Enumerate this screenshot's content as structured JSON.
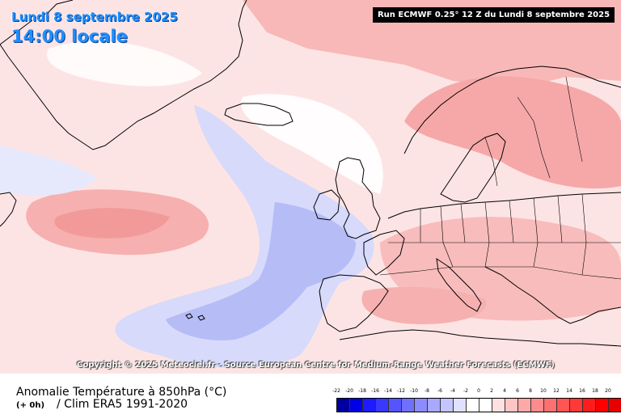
{
  "header": {
    "date": "Lundi 8 septembre 2025",
    "time": "14:00 locale",
    "run": "Run ECMWF 0.25° 12 Z du Lundi 8 septembre 2025"
  },
  "map": {
    "copyright": "Copyright © 2025 Meteociel.fr - Source European Centre for Medium-Range Weather Forecasts (ECMWF)",
    "regions": [
      "Greenland",
      "Iceland",
      "Scandinavia",
      "British Isles",
      "Europe",
      "North Atlantic"
    ]
  },
  "footer": {
    "title": "Anomalie Température à 850hPa (°C)",
    "hour": "(+ 0h)",
    "clim": "/ Clim ERA5 1991-2020"
  },
  "scale": {
    "labels": [
      "-22",
      "-20",
      "-18",
      "-16",
      "-14",
      "-12",
      "-10",
      "-8",
      "-6",
      "-4",
      "-2",
      "0",
      "2",
      "4",
      "6",
      "8",
      "10",
      "12",
      "14",
      "16",
      "18",
      "20"
    ],
    "colors": [
      "#0000a0",
      "#0000e6",
      "#1c1cff",
      "#3838ff",
      "#5555ff",
      "#7070ff",
      "#8c8cff",
      "#a8a8ff",
      "#c4c4ff",
      "#e0e0ff",
      "#ffffff",
      "#ffffff",
      "#ffe0e0",
      "#ffc4c4",
      "#ffa8a8",
      "#ff8c8c",
      "#ff7070",
      "#ff5555",
      "#ff3838",
      "#ff1c1c",
      "#ff0000",
      "#e60000"
    ]
  },
  "colors": {
    "text_blue": "#1e90ff",
    "ocean_warm": "#fcdcdc",
    "ocean_cold": "#d7dafa",
    "cold_core": "#b6bcf6",
    "warm_core": "#f5a6a6",
    "coast": "#000000"
  }
}
